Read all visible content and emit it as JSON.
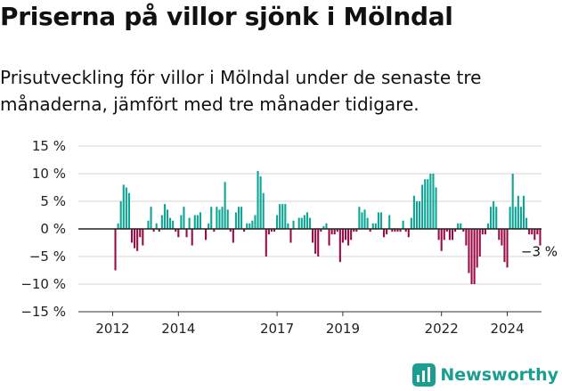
{
  "header": {
    "title": "Priserna på villor sjönk i Mölndal",
    "subtitle": "Prisutveckling för villor i Mölndal under de senaste tre månaderna, jämfört med tre månader tidigare."
  },
  "brand": {
    "name": "Newsworthy",
    "icon": "newsworthy-logo-icon",
    "color": "#1a9e8f"
  },
  "chart_data": {
    "type": "bar",
    "x_start": "2011-01",
    "x_step": "month",
    "values": [
      null,
      null,
      null,
      null,
      null,
      null,
      null,
      null,
      null,
      null,
      null,
      null,
      null,
      -7.5,
      1,
      5,
      8,
      7.5,
      6.5,
      -2.5,
      -3.5,
      -4,
      -1.5,
      -3,
      0,
      1.5,
      4,
      -0.5,
      1,
      -0.5,
      2.5,
      4.5,
      3.5,
      2,
      1.5,
      -0.5,
      -1.5,
      2.5,
      4,
      -1.5,
      2,
      -3,
      2.5,
      2.5,
      3,
      0,
      -2,
      1,
      4,
      -0.5,
      4,
      3.5,
      4,
      8.5,
      3.5,
      -0.5,
      -2.5,
      3,
      4,
      4,
      -0.5,
      1,
      1,
      1.5,
      2.5,
      10.5,
      9.5,
      6.5,
      -5,
      -1,
      -0.5,
      -0.5,
      2.5,
      4.5,
      4.5,
      4.5,
      1,
      -2.5,
      1.5,
      0,
      2,
      2,
      2.5,
      3,
      2,
      -2.5,
      -4.5,
      -5,
      -0.5,
      0.5,
      1,
      -3,
      -1,
      -1,
      -0.5,
      -6,
      -2.5,
      -2,
      -3,
      -2,
      -0.5,
      -0.5,
      4,
      3,
      3.5,
      2,
      -0.5,
      1,
      1,
      3,
      3,
      -1.5,
      -1,
      2.5,
      -0.5,
      -0.5,
      -0.5,
      -0.5,
      1.5,
      -0.5,
      -1.5,
      2,
      6,
      5,
      5,
      8,
      9,
      9,
      10,
      10,
      7.5,
      -2,
      -4,
      -2,
      -0.5,
      -2,
      -2,
      -0.5,
      1,
      1,
      -0.5,
      -3,
      -8,
      -10,
      -10,
      -7,
      -5,
      -1,
      -1,
      1,
      4,
      5,
      4,
      -2,
      -3,
      -6,
      -7,
      4,
      10,
      4,
      6,
      4,
      6,
      2,
      -1,
      -1,
      -2,
      -1,
      -3
    ],
    "highlight": {
      "label": "−3 %"
    },
    "x_ticks": [
      "2012",
      "2014",
      "2017",
      "2019",
      "2022",
      "2024"
    ],
    "y_ticks": [
      "15 %",
      "10 %",
      "5 %",
      "0 %",
      "−5 %",
      "−10 %",
      "−15 %"
    ],
    "ylim": [
      -15,
      15
    ],
    "colors": {
      "positive": "#0aa594",
      "negative": "#9b0a44",
      "zero_line": "#222222",
      "grid": "#d6d6d6",
      "axis": "#333333"
    },
    "grid": true,
    "legend": "none"
  }
}
